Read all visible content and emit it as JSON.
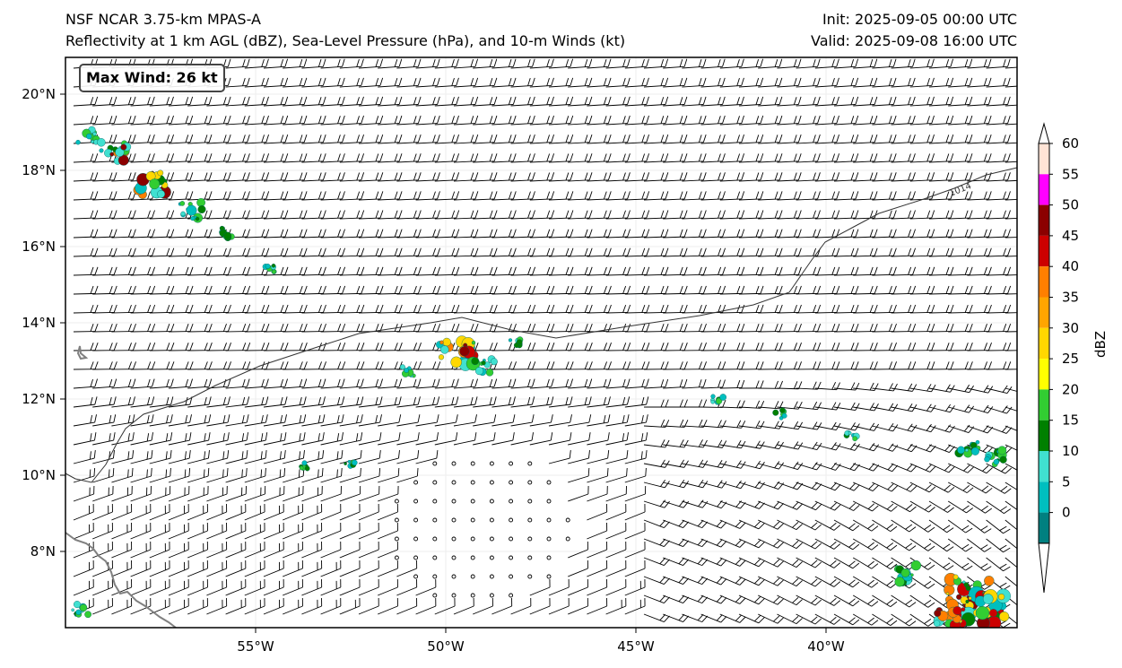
{
  "header": {
    "model": "NSF NCAR 3.75-km MPAS-A",
    "fields": "Reflectivity at 1 km AGL (dBZ), Sea-Level Pressure (hPa), and 10-m Winds (kt)",
    "init": "Init: 2025-09-05 00:00 UTC",
    "valid": "Valid: 2025-09-08 16:00 UTC"
  },
  "annotation": {
    "max_wind": "Max Wind: 26 kt"
  },
  "map": {
    "lon_range": [
      -60,
      -35
    ],
    "lat_range": [
      6,
      21
    ],
    "lon_ticks": [
      "55°W",
      "50°W",
      "45°W",
      "40°W"
    ],
    "lat_ticks": [
      "20°N",
      "18°N",
      "16°N",
      "14°N",
      "12°N",
      "10°N",
      "8°N"
    ],
    "isobar_label": "1014",
    "colors": {
      "coastline": "#808080",
      "isobar": "#000000",
      "barbs": "#000000"
    }
  },
  "colorbar": {
    "label": "dBZ",
    "ticks": [
      "60",
      "55",
      "50",
      "45",
      "40",
      "35",
      "30",
      "25",
      "20",
      "15",
      "10",
      "5",
      "0"
    ],
    "colors": [
      "#ffe4d6",
      "#ff00ff",
      "#8b0000",
      "#cc0000",
      "#ff7f00",
      "#ffa500",
      "#ffd700",
      "#ffff00",
      "#32cd32",
      "#008000",
      "#40e0d0",
      "#00bfbf",
      "#008080"
    ]
  }
}
